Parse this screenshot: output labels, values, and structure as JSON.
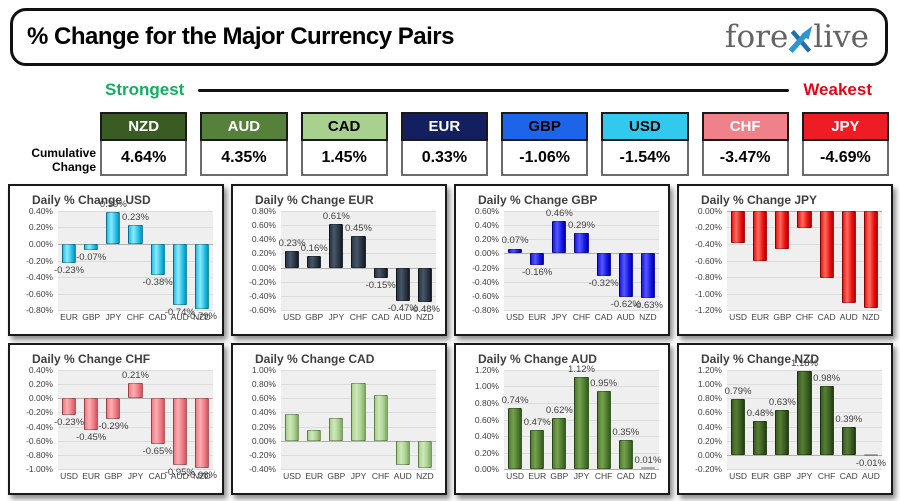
{
  "header": {
    "title": "% Change for the Major Currency Pairs",
    "logo": {
      "part1": "fore",
      "part2": "live",
      "x_color": "#2E96CF",
      "x_color2": "#1D6FAE"
    }
  },
  "polarity": {
    "strongest": "Strongest",
    "weakest": "Weakest",
    "strongest_color": "#10B060",
    "weakest_color": "#E40613"
  },
  "cumulative": {
    "label_line1": "Cumulative",
    "label_line2": "Change",
    "items": [
      {
        "code": "NZD",
        "value": "4.64%",
        "bg": "#3A5B23",
        "fg": "#FFFFFF"
      },
      {
        "code": "AUD",
        "value": "4.35%",
        "bg": "#56813B",
        "fg": "#FFFFFF"
      },
      {
        "code": "CAD",
        "value": "1.45%",
        "bg": "#A8D08F",
        "fg": "#000000"
      },
      {
        "code": "EUR",
        "value": "0.33%",
        "bg": "#131F5E",
        "fg": "#FFFFFF"
      },
      {
        "code": "GBP",
        "value": "-1.06%",
        "bg": "#1C64E8",
        "fg": "#000000"
      },
      {
        "code": "USD",
        "value": "-1.54%",
        "bg": "#31C9EE",
        "fg": "#000000"
      },
      {
        "code": "CHF",
        "value": "-3.47%",
        "bg": "#F0808A",
        "fg": "#FFFFFF"
      },
      {
        "code": "JPY",
        "value": "-4.69%",
        "bg": "#EE1C25",
        "fg": "#FFFFFF"
      }
    ]
  },
  "chart_data": [
    {
      "type": "bar",
      "title": "Daily % Change USD",
      "categories": [
        "EUR",
        "GBP",
        "JPY",
        "CHF",
        "CAD",
        "AUD",
        "NZD"
      ],
      "values": [
        -0.23,
        -0.07,
        0.39,
        0.23,
        -0.38,
        -0.74,
        -0.79
      ],
      "data_labels": true,
      "ylim": [
        -0.8,
        0.4
      ],
      "ytick_step": 0.2,
      "colors": {
        "light": "#8FE9FB",
        "base": "#24C2E8",
        "dark": "#0A8FBC"
      }
    },
    {
      "type": "bar",
      "title": "Daily % Change EUR",
      "categories": [
        "USD",
        "GBP",
        "JPY",
        "CHF",
        "CAD",
        "AUD",
        "NZD"
      ],
      "values": [
        0.23,
        0.16,
        0.61,
        0.45,
        -0.15,
        -0.47,
        -0.48
      ],
      "data_labels": true,
      "ylim": [
        -0.6,
        0.8
      ],
      "ytick_step": 0.2,
      "colors": {
        "light": "#47566B",
        "base": "#2B3642",
        "dark": "#151B24"
      }
    },
    {
      "type": "bar",
      "title": "Daily % Change GBP",
      "categories": [
        "USD",
        "EUR",
        "JPY",
        "CHF",
        "CAD",
        "AUD",
        "NZD"
      ],
      "values": [
        0.07,
        -0.16,
        0.46,
        0.29,
        -0.32,
        -0.62,
        -0.63
      ],
      "data_labels": true,
      "ylim": [
        -0.8,
        0.6
      ],
      "ytick_step": 0.2,
      "colors": {
        "light": "#5757FF",
        "base": "#1A1AE8",
        "dark": "#0000A0"
      }
    },
    {
      "type": "bar",
      "title": "Daily % Change JPY",
      "categories": [
        "USD",
        "EUR",
        "GBP",
        "CHF",
        "CAD",
        "AUD",
        "NZD"
      ],
      "values": [
        -0.39,
        -0.61,
        -0.46,
        -0.21,
        -0.81,
        -1.12,
        -1.18
      ],
      "data_labels": false,
      "ylim": [
        -1.2,
        0.0
      ],
      "ytick_step": 0.2,
      "colors": {
        "light": "#FF6F60",
        "base": "#EE1414",
        "dark": "#B40000"
      }
    },
    {
      "type": "bar",
      "title": "Daily % Change CHF",
      "categories": [
        "USD",
        "EUR",
        "GBP",
        "JPY",
        "CAD",
        "AUD",
        "NZD"
      ],
      "values": [
        -0.23,
        -0.45,
        -0.29,
        0.21,
        -0.65,
        -0.95,
        -0.98
      ],
      "data_labels": true,
      "ylim": [
        -1.0,
        0.4
      ],
      "ytick_step": 0.2,
      "colors": {
        "light": "#F9AFB4",
        "base": "#F17C84",
        "dark": "#D2545E"
      }
    },
    {
      "type": "bar",
      "title": "Daily % Change CAD",
      "categories": [
        "USD",
        "EUR",
        "GBP",
        "JPY",
        "CHF",
        "AUD",
        "NZD"
      ],
      "values": [
        0.38,
        0.15,
        0.32,
        0.81,
        0.65,
        -0.35,
        -0.39
      ],
      "data_labels": false,
      "ylim": [
        -0.4,
        1.0
      ],
      "ytick_step": 0.2,
      "colors": {
        "light": "#CFE8BA",
        "base": "#A9D08E",
        "dark": "#7CA95F"
      }
    },
    {
      "type": "bar",
      "title": "Daily % Change AUD",
      "categories": [
        "USD",
        "EUR",
        "GBP",
        "JPY",
        "CHF",
        "CAD",
        "NZD"
      ],
      "values": [
        0.74,
        0.47,
        0.62,
        1.12,
        0.95,
        0.35,
        0.01
      ],
      "data_labels": true,
      "ylim": [
        0.0,
        1.2
      ],
      "ytick_step": 0.2,
      "colors": {
        "light": "#77A24D",
        "base": "#4F7D33",
        "dark": "#365921"
      }
    },
    {
      "type": "bar",
      "title": "Daily % Change NZD",
      "categories": [
        "USD",
        "EUR",
        "GBP",
        "JPY",
        "CHF",
        "CAD",
        "AUD"
      ],
      "values": [
        0.79,
        0.48,
        0.63,
        1.18,
        0.98,
        0.39,
        -0.01
      ],
      "data_labels": true,
      "ylim": [
        -0.2,
        1.2
      ],
      "ytick_step": 0.2,
      "colors": {
        "light": "#567F33",
        "base": "#3B5D24",
        "dark": "#243D14"
      }
    }
  ]
}
